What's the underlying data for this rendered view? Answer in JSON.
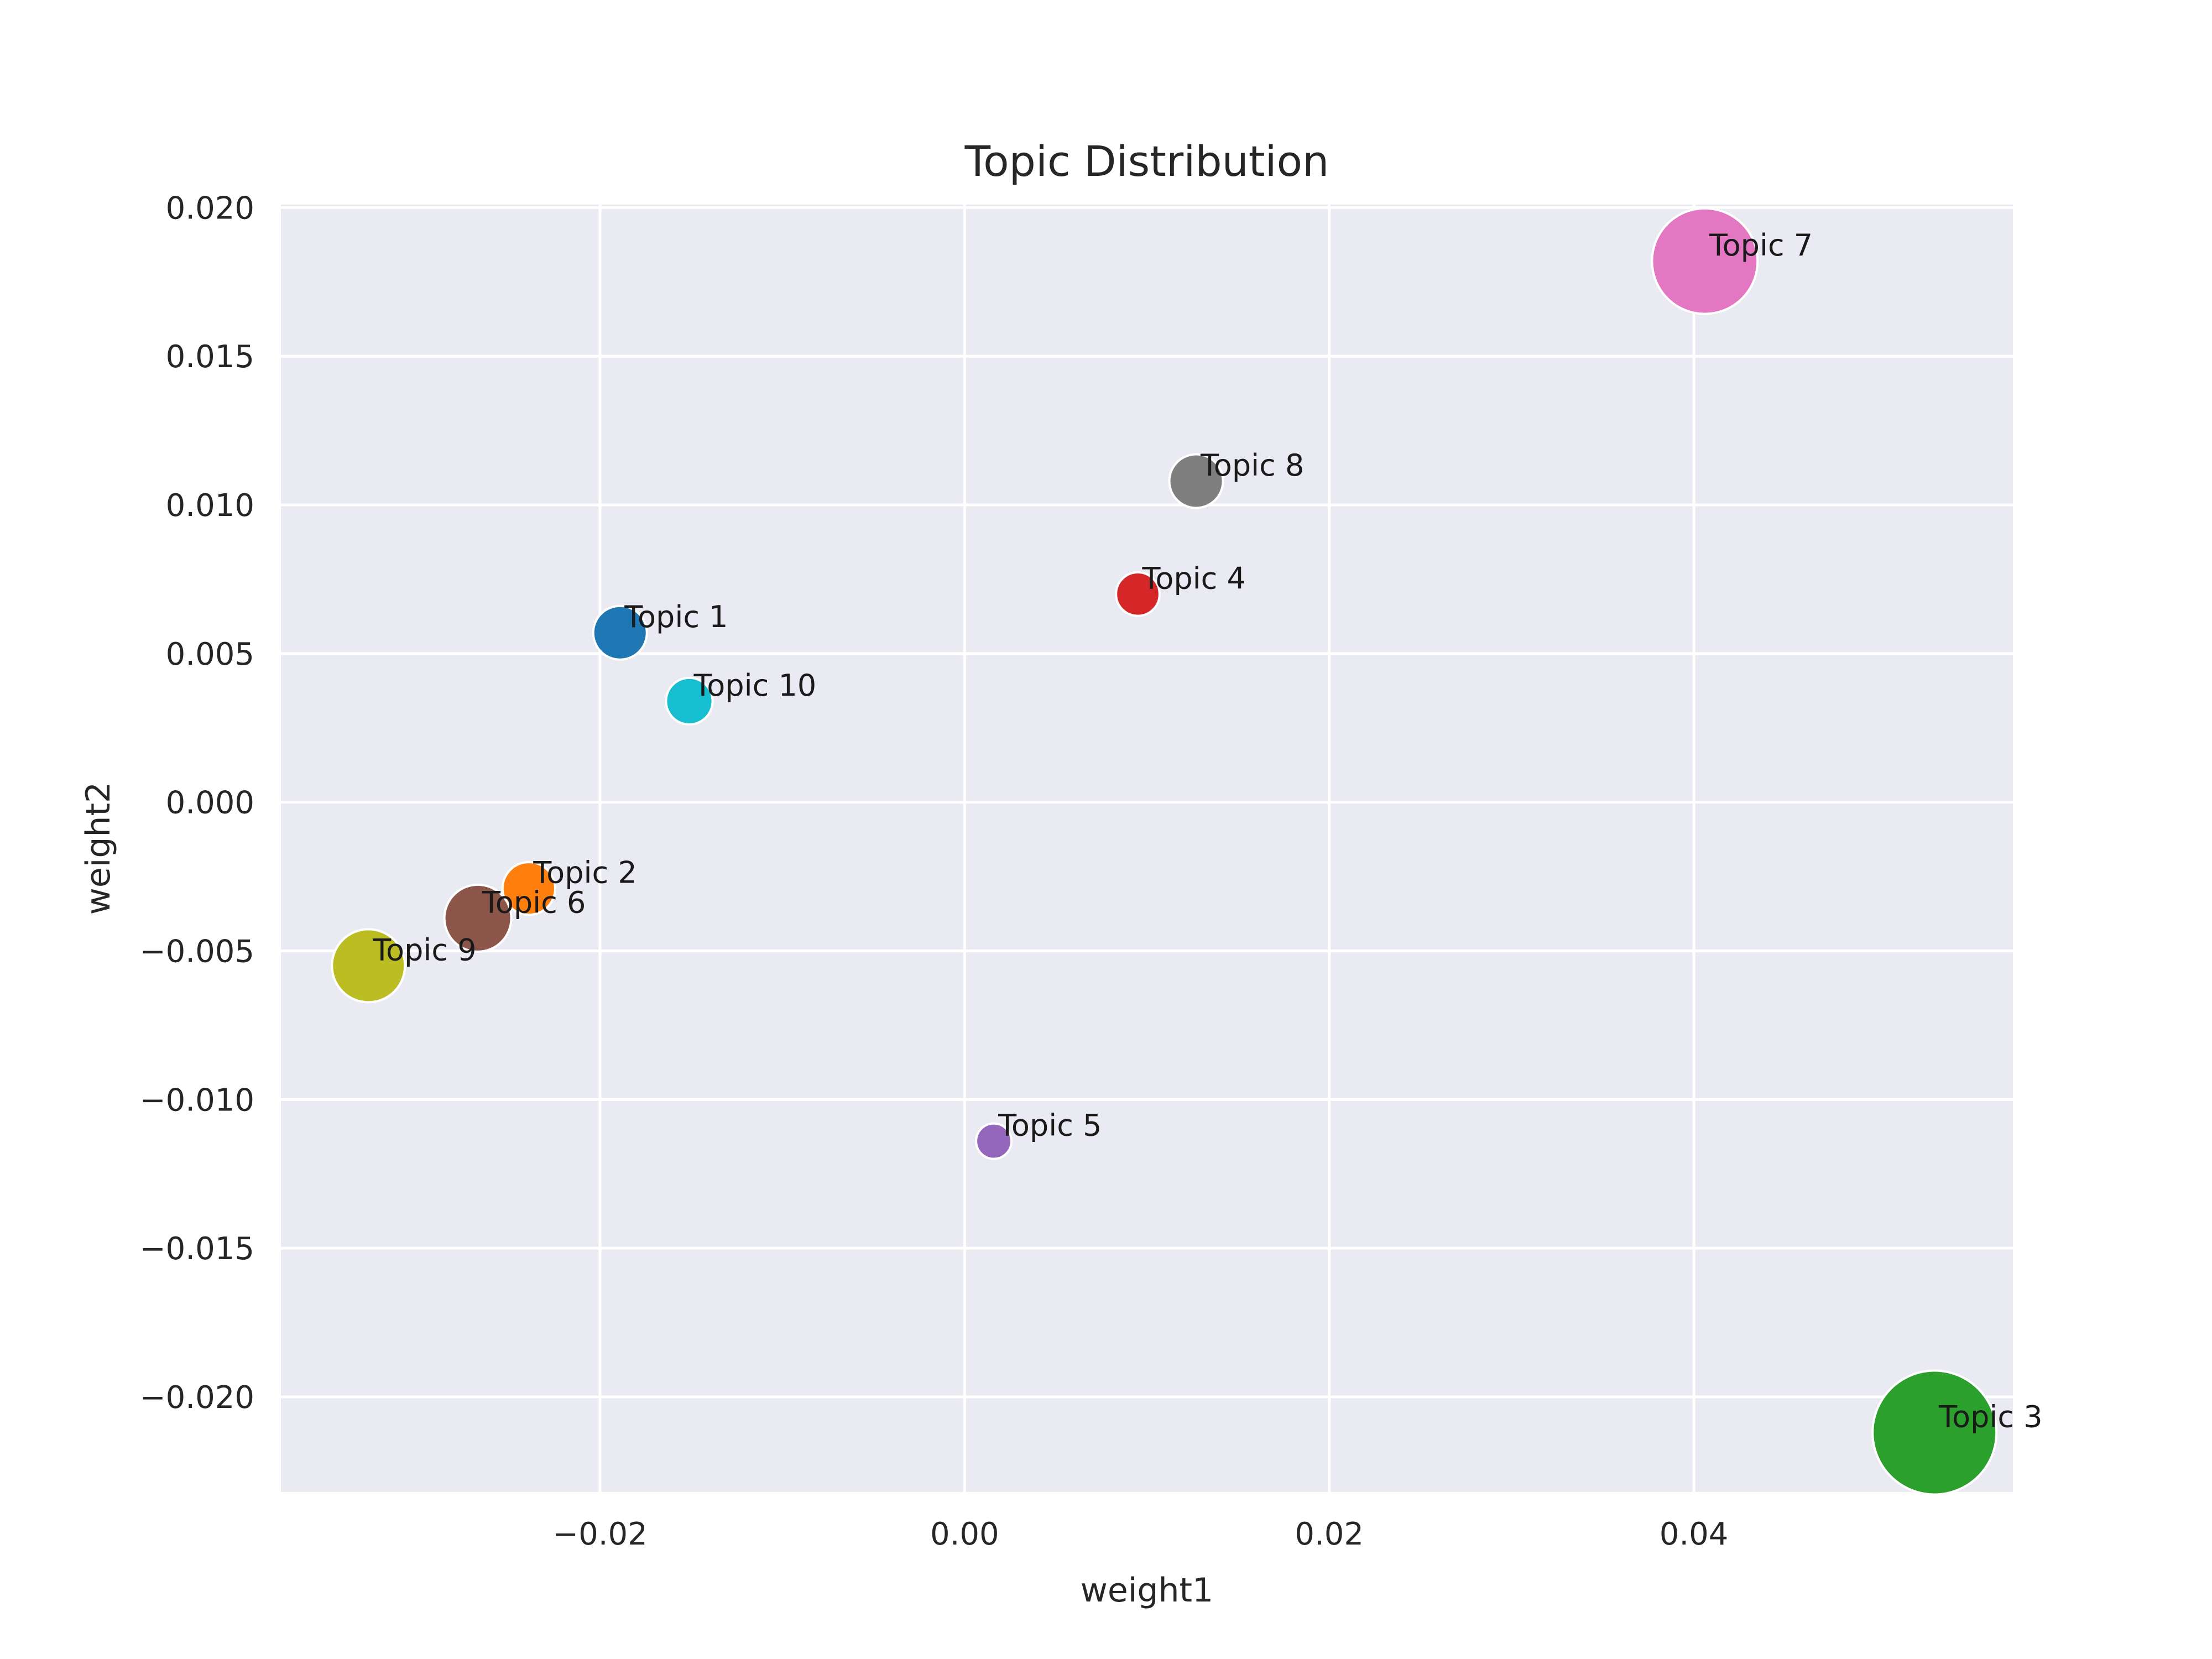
{
  "chart_data": {
    "type": "scatter",
    "title": "Topic Distribution",
    "xlabel": "weight1",
    "ylabel": "weight2",
    "xlim": [
      -0.0375,
      0.0575
    ],
    "ylim": [
      -0.0232,
      0.0201
    ],
    "x_ticks": [
      -0.02,
      0.0,
      0.02,
      0.04
    ],
    "x_tick_labels": [
      "−0.02",
      "0.00",
      "0.02",
      "0.04"
    ],
    "y_ticks": [
      0.02,
      0.015,
      0.01,
      0.005,
      0.0,
      -0.005,
      -0.01,
      -0.015,
      -0.02
    ],
    "y_tick_labels": [
      "0.020",
      "0.015",
      "0.010",
      "0.005",
      "0.000",
      "−0.005",
      "−0.010",
      "−0.015",
      "−0.020"
    ],
    "grid": true,
    "background": "#eaeaf2",
    "points": [
      {
        "label": "Topic 1",
        "x": -0.0189,
        "y": 0.0057,
        "size": 0.31,
        "color": "#1f77b4"
      },
      {
        "label": "Topic 2",
        "x": -0.0239,
        "y": -0.0029,
        "size": 0.3,
        "color": "#ff7f0e"
      },
      {
        "label": "Topic 3",
        "x": 0.0532,
        "y": -0.0212,
        "size": 1.0,
        "color": "#2ca02c"
      },
      {
        "label": "Topic 4",
        "x": 0.0095,
        "y": 0.007,
        "size": 0.21,
        "color": "#d62728"
      },
      {
        "label": "Topic 5",
        "x": 0.0016,
        "y": -0.0114,
        "size": 0.13,
        "color": "#9467bd"
      },
      {
        "label": "Topic 6",
        "x": -0.0267,
        "y": -0.0039,
        "size": 0.44,
        "color": "#8c564b"
      },
      {
        "label": "Topic 7",
        "x": 0.0406,
        "y": 0.0182,
        "size": 0.82,
        "color": "#e377c2"
      },
      {
        "label": "Topic 8",
        "x": 0.0127,
        "y": 0.0108,
        "size": 0.31,
        "color": "#7f7f7f"
      },
      {
        "label": "Topic 9",
        "x": -0.0327,
        "y": -0.0055,
        "size": 0.5,
        "color": "#bcbd22"
      },
      {
        "label": "Topic 10",
        "x": -0.0151,
        "y": 0.0034,
        "size": 0.24,
        "color": "#17becf"
      }
    ]
  }
}
